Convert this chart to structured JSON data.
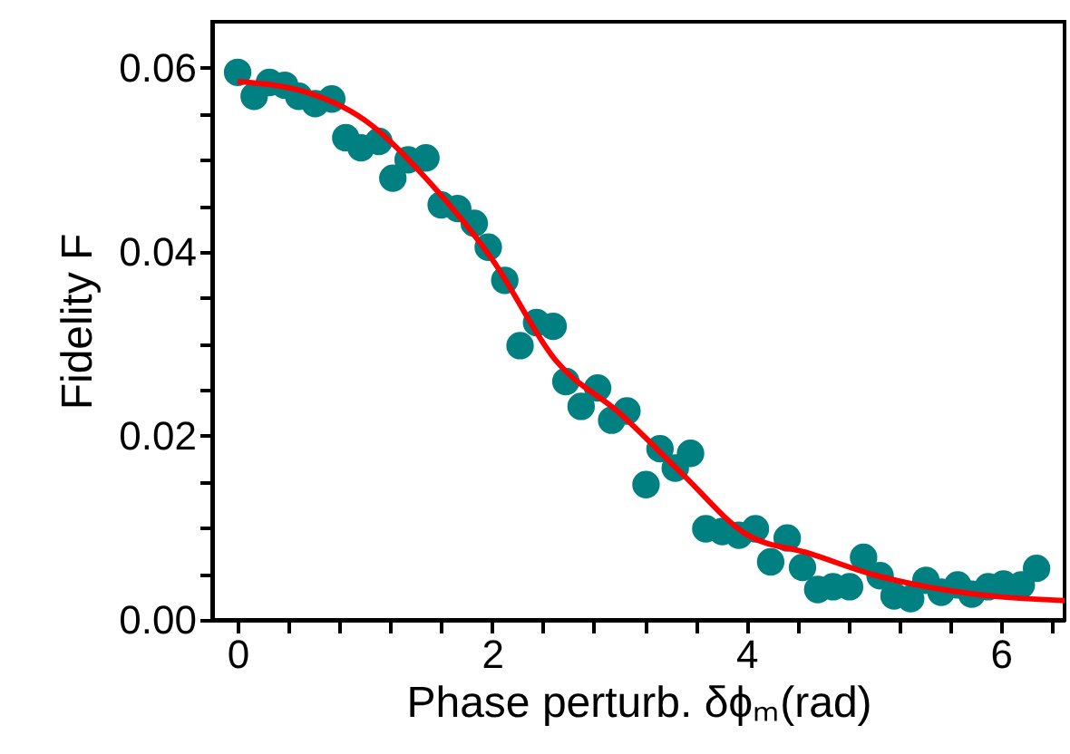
{
  "chart_data": {
    "type": "scatter",
    "xlabel": "Phase perturb. δϕₘ(rad)",
    "ylabel": "Fidelity F",
    "xlim": [
      -0.2,
      6.5
    ],
    "ylim": [
      0,
      0.065
    ],
    "xticks": [
      0,
      {
        "value": 0.4,
        "label": null
      },
      {
        "value": 0.8,
        "label": null
      },
      {
        "value": 1.2,
        "label": null
      },
      {
        "value": 1.6,
        "label": null
      },
      2,
      {
        "value": 2.4,
        "label": null
      },
      {
        "value": 2.8,
        "label": null
      },
      {
        "value": 3.2,
        "label": null
      },
      {
        "value": 3.6,
        "label": null
      },
      4,
      {
        "value": 4.4,
        "label": null
      },
      {
        "value": 4.8,
        "label": null
      },
      {
        "value": 5.2,
        "label": null
      },
      {
        "value": 5.6,
        "label": null
      },
      6,
      {
        "value": 6.4,
        "label": null
      }
    ],
    "yticks": [
      {
        "value": 0,
        "label": "0.00"
      },
      {
        "value": 0.005,
        "label": null
      },
      {
        "value": 0.01,
        "label": null
      },
      {
        "value": 0.015,
        "label": null
      },
      {
        "value": 0.02,
        "label": "0.02"
      },
      {
        "value": 0.025,
        "label": null
      },
      {
        "value": 0.03,
        "label": null
      },
      {
        "value": 0.035,
        "label": null
      },
      {
        "value": 0.04,
        "label": "0.04"
      },
      {
        "value": 0.045,
        "label": null
      },
      {
        "value": 0.05,
        "label": null
      },
      {
        "value": 0.055,
        "label": null
      },
      {
        "value": 0.06,
        "label": "0.06"
      }
    ],
    "grid": false,
    "marker": "circle",
    "series": [
      {
        "color": "#008080",
        "x": [
          0,
          0.13,
          0.25,
          0.37,
          0.48,
          0.61,
          0.74,
          0.85,
          0.97,
          1.11,
          1.22,
          1.34,
          1.48,
          1.6,
          1.73,
          1.86,
          1.97,
          2.1,
          2.22,
          2.35,
          2.48,
          2.58,
          2.7,
          2.83,
          2.94,
          3.06,
          3.21,
          3.32,
          3.44,
          3.56,
          3.68,
          3.81,
          3.94,
          4.07,
          4.19,
          4.32,
          4.44,
          4.56,
          4.68,
          4.81,
          4.92,
          5.05,
          5.16,
          5.29,
          5.41,
          5.53,
          5.66,
          5.77,
          5.9,
          6.02,
          6.16,
          6.28
        ],
        "values": [
          0.0595,
          0.0569,
          0.0584,
          0.0581,
          0.0569,
          0.0561,
          0.0566,
          0.0524,
          0.0513,
          0.052,
          0.048,
          0.05,
          0.0502,
          0.0451,
          0.0447,
          0.0431,
          0.0405,
          0.0369,
          0.0298,
          0.0323,
          0.0319,
          0.0259,
          0.0232,
          0.0252,
          0.0217,
          0.0227,
          0.0147,
          0.0186,
          0.0165,
          0.0181,
          0.0099,
          0.0096,
          0.0092,
          0.0099,
          0.0063,
          0.0089,
          0.0057,
          0.0033,
          0.0036,
          0.0036,
          0.0068,
          0.0048,
          0.0026,
          0.0023,
          0.0043,
          0.003,
          0.0038,
          0.0028,
          0.0036,
          0.0039,
          0.0038,
          0.0056
        ]
      },
      {
        "type": "line",
        "color": "#ff0000",
        "marker": "none",
        "line_style": "solid",
        "x": [
          0,
          0.5,
          1,
          1.5,
          2,
          2.5,
          3,
          3.5,
          4,
          4.5,
          5,
          5.5,
          6,
          6.5
        ],
        "values": [
          0.0585,
          0.0575,
          0.0543,
          0.0477,
          0.0392,
          0.0282,
          0.0225,
          0.0158,
          0.0093,
          0.0072,
          0.0049,
          0.0034,
          0.0025,
          0.0021
        ]
      }
    ]
  }
}
